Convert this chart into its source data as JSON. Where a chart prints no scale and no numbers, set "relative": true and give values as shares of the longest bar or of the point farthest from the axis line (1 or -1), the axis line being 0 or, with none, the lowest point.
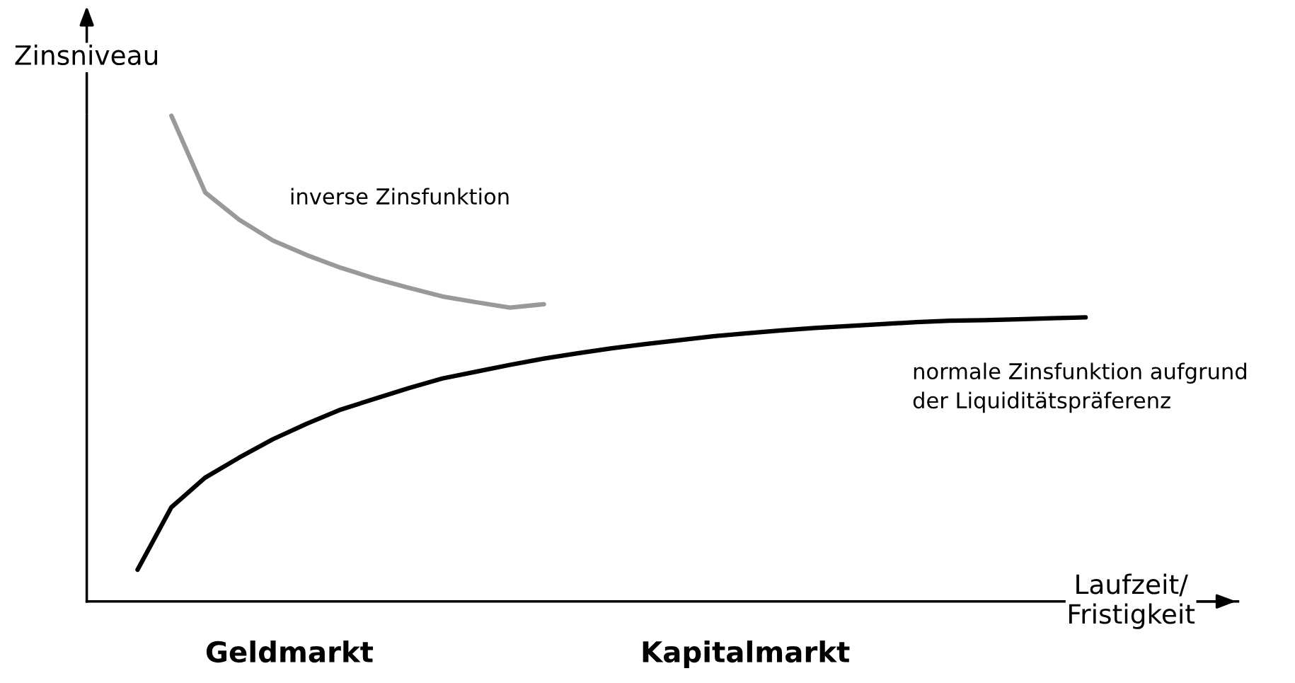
{
  "chart_data": {
    "type": "line",
    "relative": true,
    "xlabel": "Laufzeit/\nFristigkeit",
    "ylabel": "Zinsniveau",
    "annotations": [
      "inverse Zinsfunktion",
      "normale Zinsfunktion aufgrund\nder Liquiditätspräferenz",
      "Geldmarkt",
      "Kapitalmarkt"
    ],
    "categories": [
      null,
      null,
      null,
      null,
      null,
      null,
      null,
      null,
      null,
      null,
      null,
      null,
      null,
      null,
      null,
      null,
      null,
      null,
      null,
      null,
      null,
      null,
      null,
      null,
      null,
      null,
      null,
      null,
      null,
      null,
      null,
      null,
      null,
      null
    ],
    "series": [
      {
        "color": "#999999",
        "values": [
          null,
          null,
          1.0,
          0.842,
          0.786,
          0.743,
          0.713,
          0.687,
          0.665,
          0.646,
          0.628,
          0.616,
          0.605,
          0.612,
          null,
          null,
          null,
          null,
          null,
          null,
          null,
          null,
          null,
          null,
          null,
          null,
          null,
          null,
          null,
          null,
          null,
          null,
          null,
          null
        ]
      },
      {
        "color": "#000000",
        "values": [
          null,
          0.065,
          0.194,
          0.255,
          0.296,
          0.334,
          0.366,
          0.395,
          0.417,
          0.439,
          0.459,
          0.473,
          0.487,
          0.5,
          0.511,
          0.521,
          0.53,
          0.538,
          0.546,
          0.552,
          0.558,
          0.563,
          0.567,
          0.571,
          0.575,
          0.578,
          0.579,
          0.581,
          0.583,
          0.585,
          null,
          null,
          null,
          null
        ]
      }
    ],
    "legend": false
  }
}
